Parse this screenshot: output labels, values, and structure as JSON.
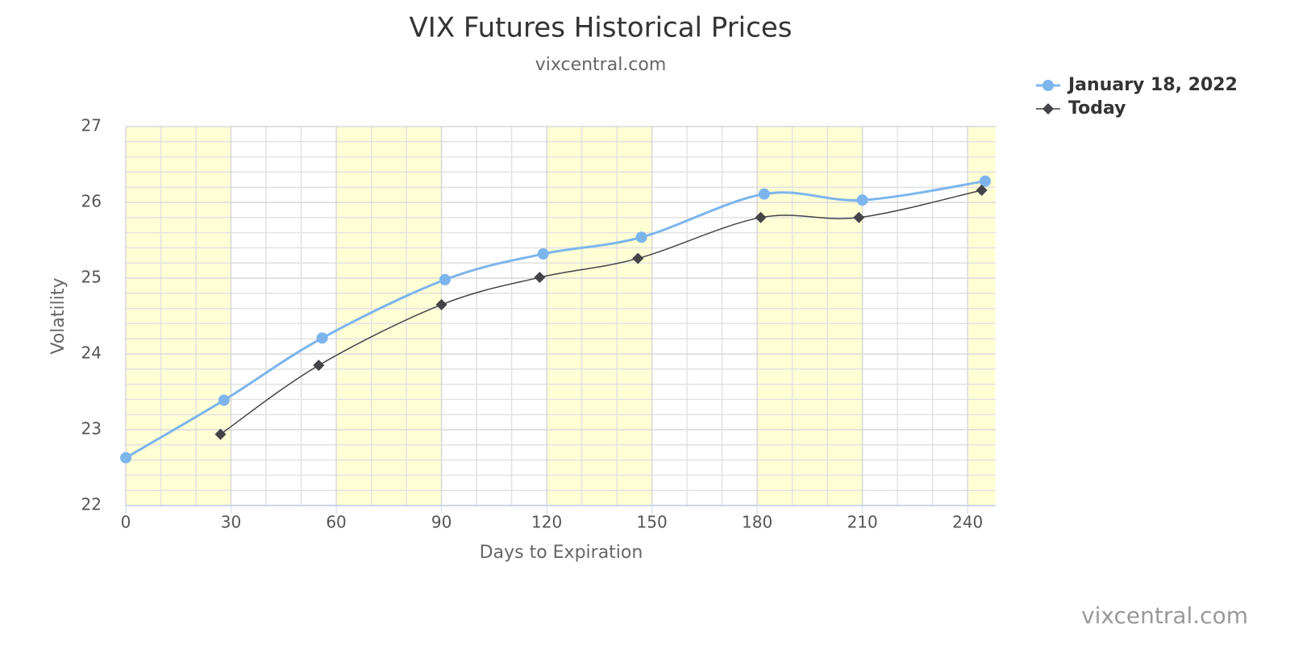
{
  "chart_data": {
    "type": "line",
    "title": "VIX Futures Historical Prices",
    "subtitle": "vixcentral.com",
    "watermark": "vixcentral.com",
    "x_label": "Days to Expiration",
    "y_label": "Volatility",
    "xlim": [
      0,
      248
    ],
    "ylim": [
      22,
      27
    ],
    "xticks": [
      0,
      30,
      60,
      90,
      120,
      150,
      180,
      210,
      240
    ],
    "yticks": [
      22,
      23,
      24,
      25,
      26,
      27
    ],
    "grid": true,
    "legend": "top-right",
    "series": [
      {
        "name": "January 18, 2022",
        "color": "#7cb5ec",
        "marker": "circle",
        "x": [
          0,
          28,
          56,
          91,
          119,
          147,
          182,
          210,
          245
        ],
        "values": [
          22.63,
          23.39,
          24.21,
          24.98,
          25.32,
          25.54,
          26.11,
          26.03,
          26.28
        ]
      },
      {
        "name": "Today",
        "color": "#434348",
        "marker": "diamond",
        "x": [
          27,
          55,
          90,
          118,
          146,
          181,
          209,
          244
        ],
        "values": [
          22.94,
          23.85,
          24.65,
          25.01,
          25.26,
          25.8,
          25.8,
          26.16
        ]
      }
    ]
  }
}
